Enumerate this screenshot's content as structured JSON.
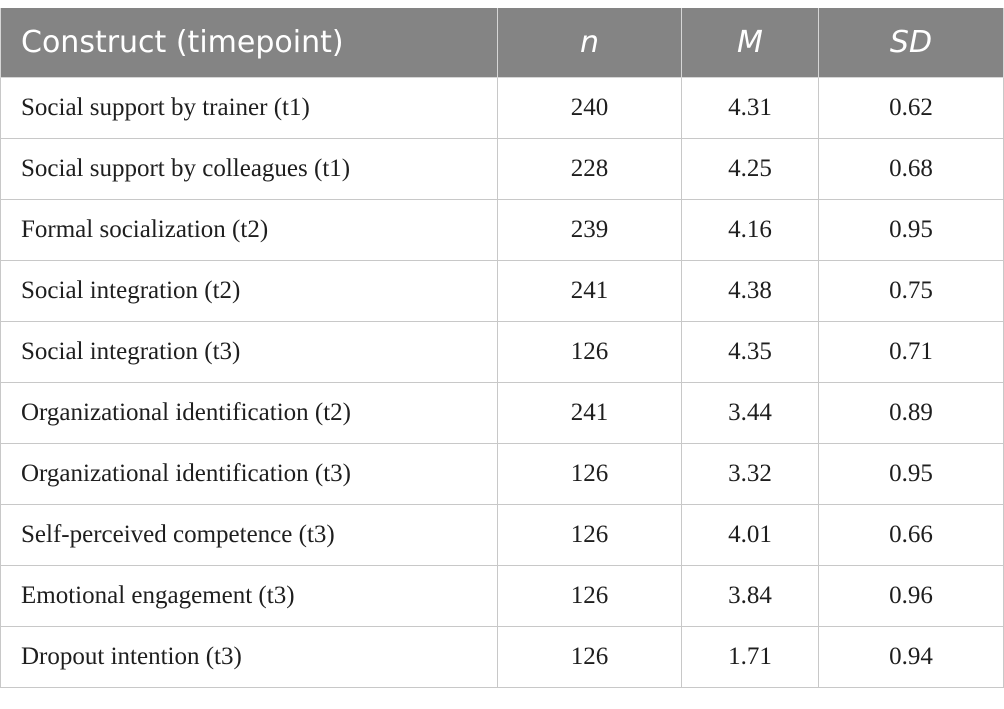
{
  "table": {
    "headers": [
      "Construct (timepoint)",
      "n",
      "M",
      "SD"
    ],
    "rows": [
      [
        "Social support by trainer (t1)",
        "240",
        "4.31",
        "0.62"
      ],
      [
        "Social support by colleagues (t1)",
        "228",
        "4.25",
        "0.68"
      ],
      [
        "Formal socialization (t2)",
        "239",
        "4.16",
        "0.95"
      ],
      [
        "Social integration (t2)",
        "241",
        "4.38",
        "0.75"
      ],
      [
        "Social integration (t3)",
        "126",
        "4.35",
        "0.71"
      ],
      [
        "Organizational identification (t2)",
        "241",
        "3.44",
        "0.89"
      ],
      [
        "Organizational identification (t3)",
        "126",
        "3.32",
        "0.95"
      ],
      [
        "Self-perceived competence (t3)",
        "126",
        "4.01",
        "0.66"
      ],
      [
        "Emotional engagement (t3)",
        "126",
        "3.84",
        "0.96"
      ],
      [
        "Dropout intention (t3)",
        "126",
        "1.71",
        "0.94"
      ]
    ]
  },
  "colors": {
    "header_background": "#848484",
    "header_text": "#ffffff",
    "body_text": "#1e1e1e",
    "grid_lines": "#c8c8c8"
  }
}
